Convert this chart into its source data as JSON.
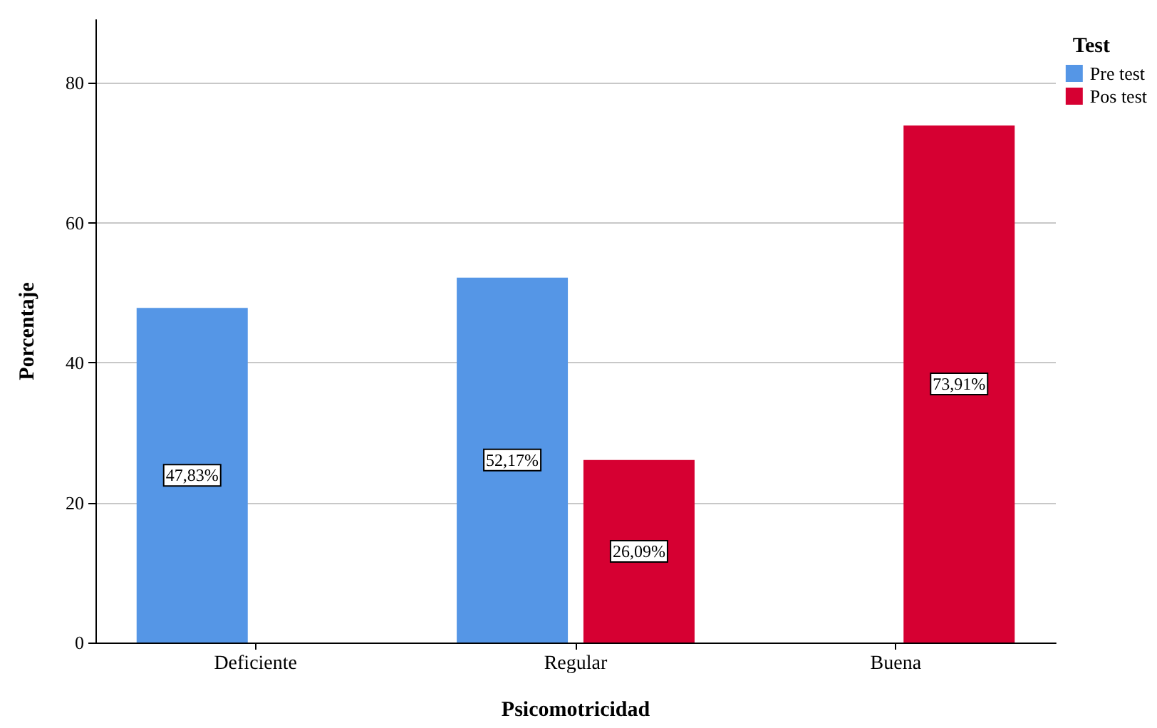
{
  "chart_data": {
    "type": "bar",
    "xlabel": "Psicomotricidad",
    "ylabel": "Porcentaje",
    "legend_title": "Test",
    "categories": [
      "Deficiente",
      "Regular",
      "Buena"
    ],
    "series": [
      {
        "name": "Pre test",
        "color": "#5596e6",
        "values": [
          47.83,
          52.17,
          null
        ],
        "value_labels": [
          "47,83%",
          "52,17%",
          null
        ]
      },
      {
        "name": "Pos test",
        "color": "#d60032",
        "values": [
          null,
          26.09,
          73.91
        ],
        "value_labels": [
          null,
          "26,09%",
          "73,91%"
        ]
      }
    ],
    "ylim": [
      0,
      89
    ],
    "yticks": [
      0,
      20,
      40,
      60,
      80
    ],
    "grid": "y",
    "legend": "top right"
  }
}
